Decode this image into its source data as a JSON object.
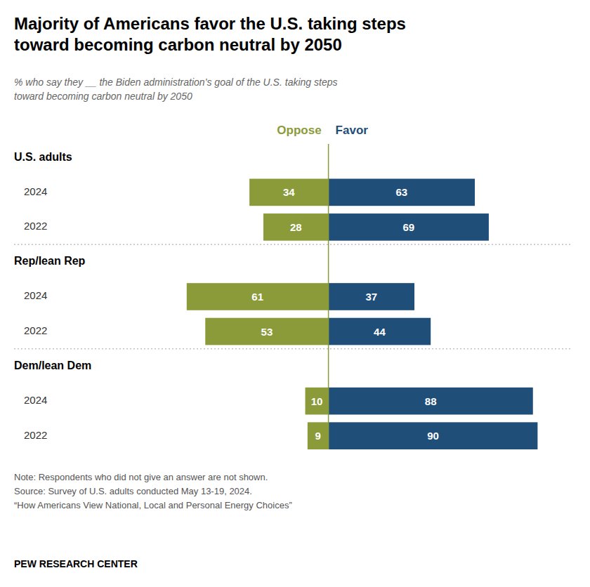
{
  "chart_data": {
    "type": "bar",
    "orientation": "horizontal",
    "title": "Majority of Americans favor the U.S. taking steps\ntoward becoming carbon neutral by 2050",
    "subtitle": "% who say they __ the Biden administration’s goal of the U.S. taking steps\ntoward becoming carbon neutral by 2050",
    "groups": [
      "U.S. adults",
      "Rep/lean Rep",
      "Dem/lean Dem"
    ],
    "categories": [
      "2024",
      "2022",
      "2024",
      "2022",
      "2024",
      "2022"
    ],
    "series": [
      {
        "name": "Oppose",
        "color": "#8B9B3A",
        "values": [
          34,
          28,
          61,
          53,
          10,
          9
        ]
      },
      {
        "name": "Favor",
        "color": "#1F4E79",
        "values": [
          63,
          69,
          37,
          44,
          88,
          90
        ]
      }
    ],
    "xlim": [
      -96,
      105
    ],
    "tick_labels": false,
    "grid": false,
    "data_labels": true,
    "annotations": [
      "Note: Respondents who did not give an answer are not shown.\nSource: Survey of U.S. adults conducted May 13-19, 2024.\n“How Americans View National, Local and Personal Energy Choices”",
      "PEW RESEARCH CENTER"
    ]
  }
}
